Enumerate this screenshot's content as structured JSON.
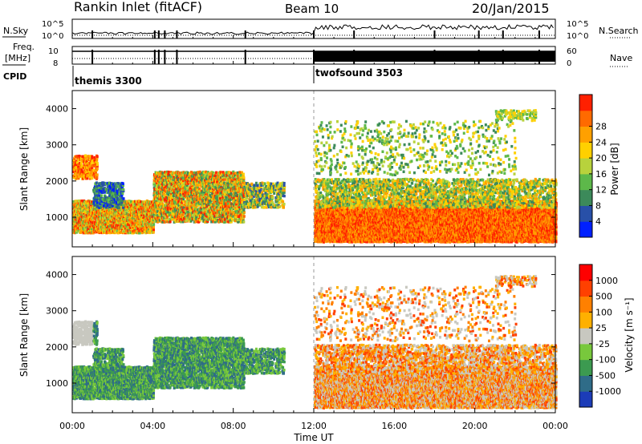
{
  "header": {
    "station": "Rankin Inlet (fitACF)",
    "beam": "Beam 10",
    "date": "20/Jan/2015"
  },
  "panels": {
    "nsky": {
      "label": "N.Sky",
      "right_label": "N.Search",
      "ticks_left": [
        "10^5",
        "10^0"
      ],
      "ticks_right": [
        "10^5",
        "10^0"
      ]
    },
    "freq": {
      "label_line1": "Freq.",
      "label_line2": "[MHz]",
      "right_label": "Nave",
      "ticks_left": [
        "10",
        "8"
      ],
      "ticks_right": [
        "60",
        "0"
      ]
    },
    "cpid": {
      "label": "CPID",
      "modes": [
        {
          "name": "themis 3300",
          "start_hour": 0
        },
        {
          "name": "twofsound 3503",
          "start_hour": 12
        }
      ]
    }
  },
  "chart_data": [
    {
      "type": "heatmap",
      "name": "power",
      "xlabel": "",
      "ylabel": "Slant Range [km]",
      "xlim": [
        0,
        24
      ],
      "ylim": [
        180,
        4500
      ],
      "yticks": [
        "1000",
        "2000",
        "3000",
        "4000"
      ],
      "colorbar": {
        "label": "Power [dB]",
        "ticks": [
          "4",
          "8",
          "12",
          "16",
          "20",
          "24",
          "28"
        ],
        "colors": [
          "#0020ff",
          "#2850a8",
          "#3c8a5a",
          "#5db84a",
          "#b8d23c",
          "#ffd000",
          "#ffa000",
          "#ff6a00",
          "#ff2000"
        ]
      }
    },
    {
      "type": "heatmap",
      "name": "velocity",
      "xlabel": "Time UT",
      "ylabel": "Slant Range [km]",
      "xlim": [
        0,
        24
      ],
      "ylim": [
        180,
        4500
      ],
      "xticks": [
        "00:00",
        "04:00",
        "08:00",
        "12:00",
        "16:00",
        "20:00",
        "00:00"
      ],
      "yticks": [
        "1000",
        "2000",
        "3000",
        "4000"
      ],
      "colorbar": {
        "label": "Velocity [m s⁻¹]",
        "ticks": [
          "1000",
          "500",
          "100",
          "25",
          "-25",
          "-100",
          "-500",
          "-1000"
        ],
        "colors": [
          "#1c3cb8",
          "#2f6c88",
          "#3c9a50",
          "#78c83c",
          "#c8c8c0",
          "#ffb000",
          "#ff8000",
          "#ff4000",
          "#ff0000"
        ]
      }
    }
  ]
}
